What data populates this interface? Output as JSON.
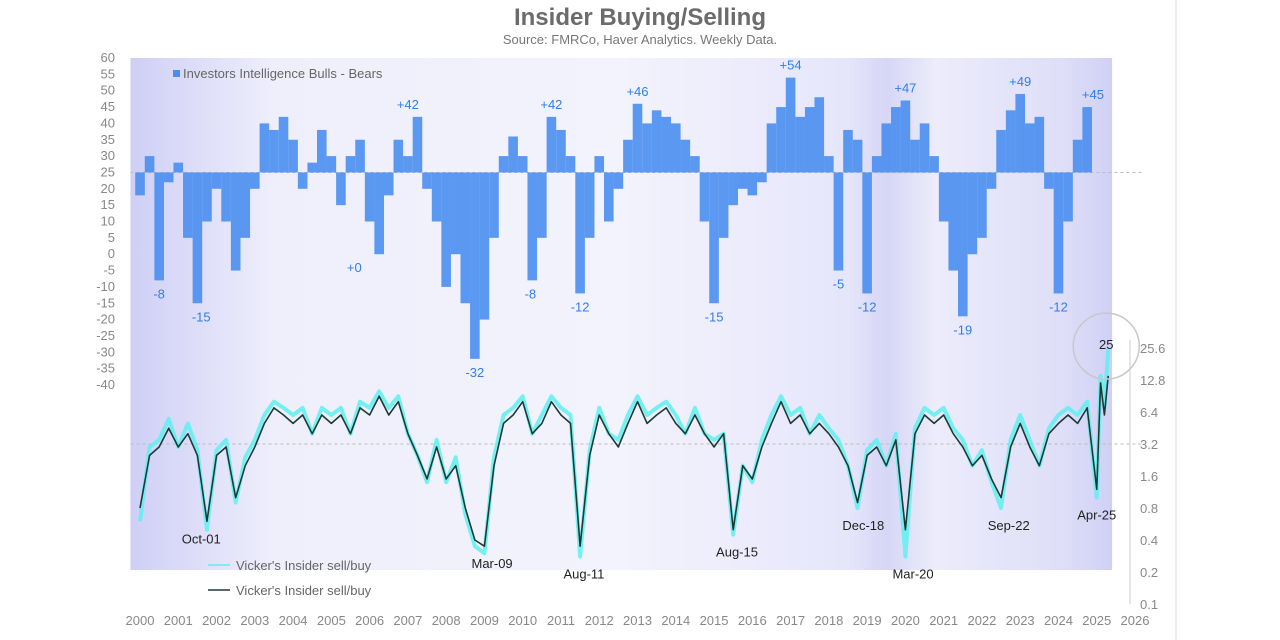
{
  "chart_data": {
    "title": "Insider Buying/Selling",
    "subtitle": "Source: FMRCo, Haver Analytics. Weekly Data.",
    "type": "bar+line",
    "x_ticks": [
      "2000",
      "2001",
      "2002",
      "2003",
      "2004",
      "2005",
      "2006",
      "2007",
      "2008",
      "2009",
      "2010",
      "2011",
      "2012",
      "2013",
      "2014",
      "2015",
      "2016",
      "2017",
      "2018",
      "2019",
      "2020",
      "2021",
      "2022",
      "2023",
      "2024",
      "2025",
      "2026"
    ],
    "left_axis": {
      "ticks": [
        60,
        55,
        50,
        45,
        40,
        35,
        30,
        25,
        20,
        15,
        10,
        5,
        0,
        -5,
        -10,
        -15,
        -20,
        -25,
        -30,
        -35,
        -40
      ],
      "range": [
        -40,
        60
      ],
      "baseline": 25
    },
    "right_axis": {
      "scale": "log2",
      "ticks": [
        "25.6",
        "12.8",
        "6.4",
        "3.2",
        "1.6",
        "0.8",
        "0.4",
        "0.2",
        "0.1"
      ],
      "range": [
        0.1,
        25.6
      ],
      "baseline": 3.2
    },
    "colors": {
      "bars": "#4a8ef0",
      "weekly": "#5ff0f0",
      "smoothed": "#1f3a35",
      "annotation": "#2f7fe8",
      "shade": "#dcdcfa"
    },
    "bulls_bears": {
      "name": "Investors Intelligence Bulls - Bears",
      "x": [
        2000.0,
        2000.25,
        2000.5,
        2000.75,
        2001.0,
        2001.25,
        2001.5,
        2001.75,
        2002.0,
        2002.25,
        2002.5,
        2002.75,
        2003.0,
        2003.25,
        2003.5,
        2003.75,
        2004.0,
        2004.25,
        2004.5,
        2004.75,
        2005.0,
        2005.25,
        2005.5,
        2005.75,
        2006.0,
        2006.25,
        2006.5,
        2006.75,
        2007.0,
        2007.25,
        2007.5,
        2007.75,
        2008.0,
        2008.25,
        2008.5,
        2008.75,
        2009.0,
        2009.25,
        2009.5,
        2009.75,
        2010.0,
        2010.25,
        2010.5,
        2010.75,
        2011.0,
        2011.25,
        2011.5,
        2011.75,
        2012.0,
        2012.25,
        2012.5,
        2012.75,
        2013.0,
        2013.25,
        2013.5,
        2013.75,
        2014.0,
        2014.25,
        2014.5,
        2014.75,
        2015.0,
        2015.25,
        2015.5,
        2015.75,
        2016.0,
        2016.25,
        2016.5,
        2016.75,
        2017.0,
        2017.25,
        2017.5,
        2017.75,
        2018.0,
        2018.25,
        2018.5,
        2018.75,
        2019.0,
        2019.25,
        2019.5,
        2019.75,
        2020.0,
        2020.25,
        2020.5,
        2020.75,
        2021.0,
        2021.25,
        2021.5,
        2021.75,
        2022.0,
        2022.25,
        2022.5,
        2022.75,
        2023.0,
        2023.25,
        2023.5,
        2023.75,
        2024.0,
        2024.25,
        2024.5,
        2024.75
      ],
      "values": [
        18,
        30,
        -8,
        22,
        28,
        5,
        -15,
        10,
        20,
        10,
        -5,
        5,
        20,
        40,
        38,
        42,
        35,
        20,
        28,
        38,
        30,
        15,
        30,
        35,
        10,
        0,
        18,
        35,
        30,
        42,
        20,
        10,
        -10,
        0,
        -15,
        -32,
        -20,
        5,
        30,
        36,
        30,
        -8,
        5,
        42,
        38,
        30,
        -12,
        5,
        30,
        10,
        20,
        35,
        46,
        40,
        44,
        42,
        40,
        35,
        30,
        10,
        -15,
        5,
        15,
        20,
        18,
        22,
        40,
        45,
        54,
        42,
        45,
        48,
        30,
        -5,
        38,
        35,
        -12,
        30,
        40,
        45,
        47,
        35,
        40,
        30,
        10,
        -5,
        -19,
        0,
        5,
        20,
        38,
        44,
        49,
        40,
        42,
        20,
        -12,
        10,
        35,
        45
      ]
    },
    "bulls_bears_annotations": [
      {
        "x": 2000.5,
        "y": -8,
        "label": "-8"
      },
      {
        "x": 2001.6,
        "y": -15,
        "label": "-15"
      },
      {
        "x": 2005.6,
        "y": 0,
        "label": "+0"
      },
      {
        "x": 2007.0,
        "y": 42,
        "label": "+42"
      },
      {
        "x": 2008.75,
        "y": -32,
        "label": "-32"
      },
      {
        "x": 2010.2,
        "y": -8,
        "label": "-8"
      },
      {
        "x": 2010.75,
        "y": 42,
        "label": "+42"
      },
      {
        "x": 2011.5,
        "y": -12,
        "label": "-12"
      },
      {
        "x": 2013.0,
        "y": 46,
        "label": "+46"
      },
      {
        "x": 2015.0,
        "y": -15,
        "label": "-15"
      },
      {
        "x": 2017.0,
        "y": 54,
        "label": "+54"
      },
      {
        "x": 2018.25,
        "y": -5,
        "label": "-5"
      },
      {
        "x": 2019.0,
        "y": -12,
        "label": "-12"
      },
      {
        "x": 2020.0,
        "y": 47,
        "label": "+47"
      },
      {
        "x": 2021.5,
        "y": -19,
        "label": "-19"
      },
      {
        "x": 2023.0,
        "y": 49,
        "label": "+49"
      },
      {
        "x": 2024.0,
        "y": -12,
        "label": "-12"
      },
      {
        "x": 2024.9,
        "y": 45,
        "label": "+45"
      }
    ],
    "insider_weekly": {
      "name": "Vicker's Insider sell/buy",
      "x": [
        2000.0,
        2000.25,
        2000.5,
        2000.75,
        2001.0,
        2001.25,
        2001.5,
        2001.75,
        2002.0,
        2002.25,
        2002.5,
        2002.75,
        2003.0,
        2003.25,
        2003.5,
        2003.75,
        2004.0,
        2004.25,
        2004.5,
        2004.75,
        2005.0,
        2005.25,
        2005.5,
        2005.75,
        2006.0,
        2006.25,
        2006.5,
        2006.75,
        2007.0,
        2007.25,
        2007.5,
        2007.75,
        2008.0,
        2008.25,
        2008.5,
        2008.75,
        2009.0,
        2009.25,
        2009.5,
        2009.75,
        2010.0,
        2010.25,
        2010.5,
        2010.75,
        2011.0,
        2011.25,
        2011.5,
        2011.75,
        2012.0,
        2012.25,
        2012.5,
        2012.75,
        2013.0,
        2013.25,
        2013.5,
        2013.75,
        2014.0,
        2014.25,
        2014.5,
        2014.75,
        2015.0,
        2015.25,
        2015.5,
        2015.75,
        2016.0,
        2016.25,
        2016.5,
        2016.75,
        2017.0,
        2017.25,
        2017.5,
        2017.75,
        2018.0,
        2018.25,
        2018.5,
        2018.75,
        2019.0,
        2019.25,
        2019.5,
        2019.75,
        2020.0,
        2020.25,
        2020.5,
        2020.75,
        2021.0,
        2021.25,
        2021.5,
        2021.75,
        2022.0,
        2022.25,
        2022.5,
        2022.75,
        2023.0,
        2023.25,
        2023.5,
        2023.75,
        2024.0,
        2024.25,
        2024.5,
        2024.75,
        2025.0,
        2025.1,
        2025.2,
        2025.3
      ],
      "values": [
        0.6,
        3,
        3.5,
        5.5,
        3,
        5,
        2.8,
        0.5,
        2.8,
        3.5,
        0.9,
        2.4,
        3.5,
        6,
        8,
        7,
        6,
        7,
        4,
        7,
        6,
        7,
        4,
        8,
        7,
        10,
        7,
        9,
        4,
        2.5,
        1.4,
        3.5,
        1.4,
        2.4,
        0.7,
        0.35,
        0.3,
        2.4,
        6,
        7,
        9,
        4,
        6,
        9,
        7,
        6,
        0.28,
        2.8,
        7,
        4,
        3.5,
        6,
        9,
        6,
        7,
        8,
        6,
        4,
        7,
        4,
        3.5,
        4,
        0.45,
        2,
        1.4,
        3.5,
        6,
        9,
        6,
        7,
        4,
        6,
        4.5,
        3.5,
        2,
        0.8,
        2.8,
        3.5,
        2,
        4,
        0.28,
        4.5,
        7,
        6,
        7,
        4.5,
        3.5,
        2,
        2.8,
        1.4,
        0.8,
        3.5,
        6,
        3.5,
        2,
        4.5,
        6,
        7,
        6,
        8,
        1,
        14,
        7,
        25
      ]
    },
    "insider_smoothed": {
      "name": "Vicker's Insider sell/buy",
      "values": [
        0.8,
        2.5,
        3,
        4.5,
        3,
        4,
        2.5,
        0.6,
        2.5,
        3,
        1,
        2,
        3,
        5,
        7,
        6,
        5,
        6,
        4,
        6,
        5,
        6,
        4,
        7,
        6,
        9,
        6,
        8,
        4,
        2.5,
        1.5,
        3,
        1.5,
        2,
        0.8,
        0.4,
        0.35,
        2,
        5,
        6,
        8,
        4,
        5,
        8,
        6,
        5,
        0.35,
        2.5,
        6,
        4,
        3,
        5,
        8,
        5,
        6,
        7,
        5,
        4,
        6,
        4,
        3,
        4,
        0.5,
        2,
        1.5,
        3,
        5,
        8,
        5,
        6,
        4,
        5,
        4,
        3,
        2,
        0.9,
        2.5,
        3,
        2,
        3.5,
        0.5,
        4,
        6,
        5,
        6,
        4,
        3,
        2,
        2.5,
        1.5,
        1,
        3,
        5,
        3,
        2,
        4,
        5,
        6,
        5,
        7,
        1.2,
        12,
        6,
        14
      ]
    },
    "insider_annotations": [
      {
        "x": 2001.6,
        "y": 0.6,
        "label": "Oct-01"
      },
      {
        "x": 2009.2,
        "y": 0.35,
        "label": "Mar-09"
      },
      {
        "x": 2011.6,
        "y": 0.28,
        "label": "Aug-11"
      },
      {
        "x": 2015.6,
        "y": 0.45,
        "label": "Aug-15"
      },
      {
        "x": 2018.9,
        "y": 0.8,
        "label": "Dec-18"
      },
      {
        "x": 2020.2,
        "y": 0.28,
        "label": "Mar-20"
      },
      {
        "x": 2022.7,
        "y": 0.8,
        "label": "Sep-22"
      },
      {
        "x": 2025.0,
        "y": 1.0,
        "label": "Apr-25"
      }
    ],
    "peak_callout": {
      "x": 2025.3,
      "y": 25,
      "label": "25"
    },
    "legend": {
      "position": "bottom-left"
    }
  }
}
